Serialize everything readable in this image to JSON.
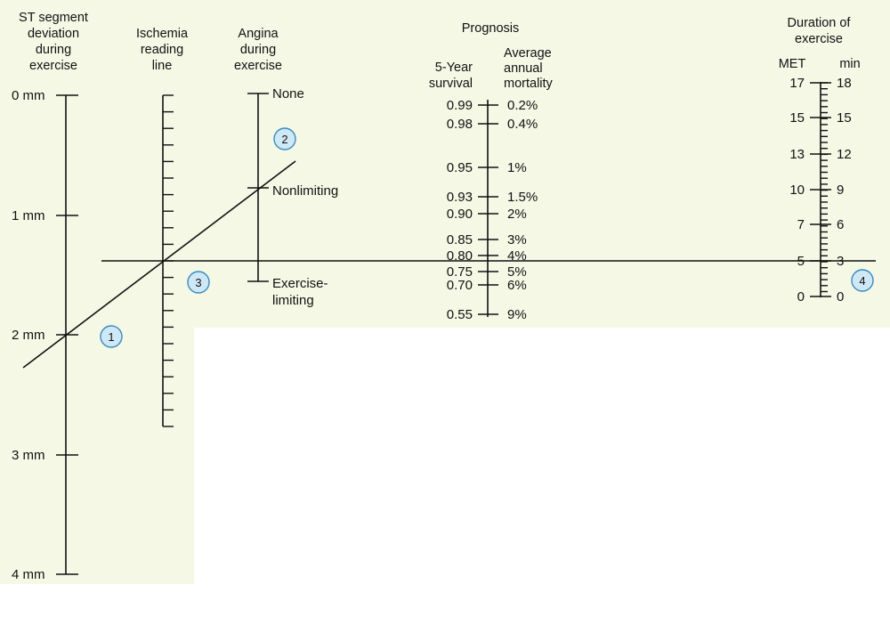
{
  "colors": {
    "panel": "#f6f8e6",
    "marker_fill": "#cfe8f5",
    "marker_stroke": "#3b8bc0",
    "ink": "#111111"
  },
  "titles": {
    "st": [
      "ST segment",
      "deviation",
      "during",
      "exercise"
    ],
    "ischemia": [
      "Ischemia",
      "reading",
      "line"
    ],
    "angina": [
      "Angina",
      "during",
      "exercise"
    ],
    "prognosis": "Prognosis",
    "survival": [
      "5-Year",
      "survival"
    ],
    "mortality": [
      "Average",
      "annual",
      "mortality"
    ],
    "duration": [
      "Duration of",
      "exercise"
    ],
    "met": "MET",
    "min": "min"
  },
  "st_scale": [
    "0 mm",
    "1 mm",
    "2 mm",
    "3 mm",
    "4 mm"
  ],
  "angina_scale": [
    "None",
    "Nonlimiting",
    "Exercise-",
    "limiting"
  ],
  "prognosis_scale": [
    {
      "survival": "0.99",
      "mortality": "0.2%"
    },
    {
      "survival": "0.98",
      "mortality": "0.4%"
    },
    {
      "survival": "0.95",
      "mortality": "1%"
    },
    {
      "survival": "0.93",
      "mortality": "1.5%"
    },
    {
      "survival": "0.90",
      "mortality": "2%"
    },
    {
      "survival": "0.85",
      "mortality": "3%"
    },
    {
      "survival": "0.80",
      "mortality": "4%"
    },
    {
      "survival": "0.75",
      "mortality": "5%"
    },
    {
      "survival": "0.70",
      "mortality": "6%"
    },
    {
      "survival": "0.55",
      "mortality": "9%"
    }
  ],
  "duration_scale": [
    {
      "met": "17",
      "min": "18"
    },
    {
      "met": "15",
      "min": "15"
    },
    {
      "met": "13",
      "min": "12"
    },
    {
      "met": "10",
      "min": "9"
    },
    {
      "met": "7",
      "min": "6"
    },
    {
      "met": "5",
      "min": "3"
    },
    {
      "met": "0",
      "min": "0"
    }
  ],
  "markers": [
    "1",
    "2",
    "3",
    "4"
  ]
}
